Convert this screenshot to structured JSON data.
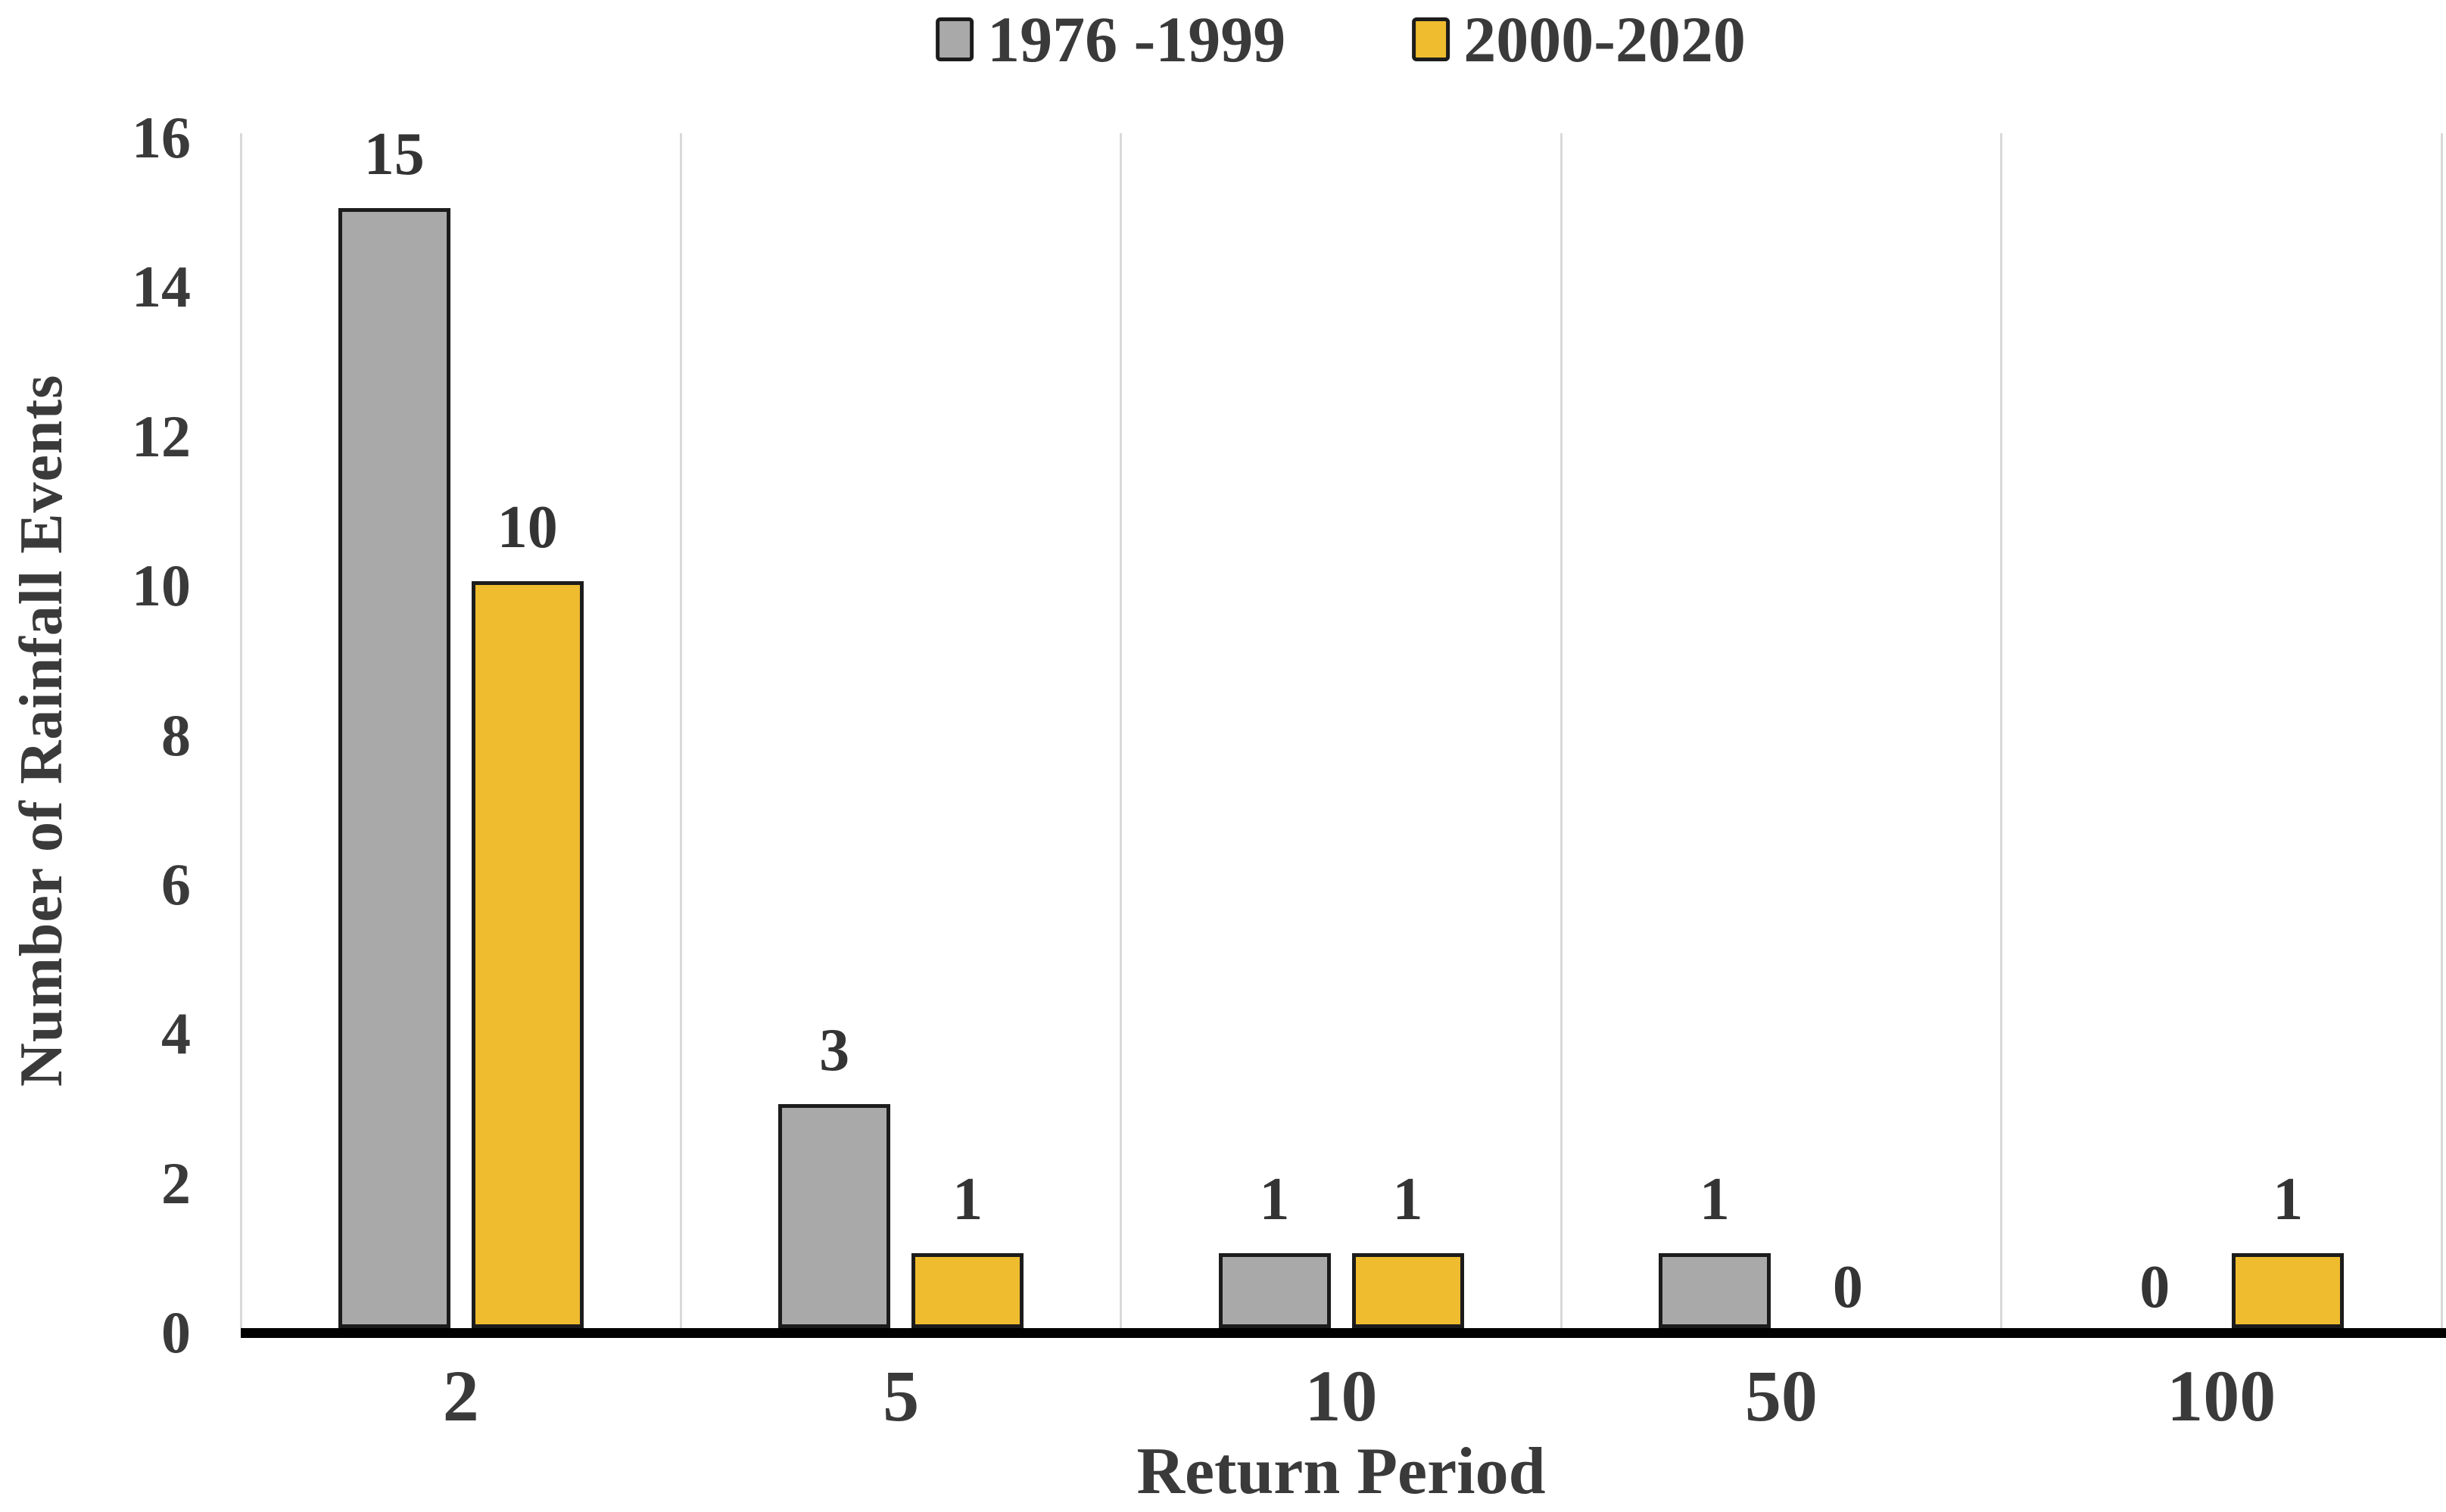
{
  "chart_data": {
    "type": "bar",
    "title": "",
    "categories": [
      "2",
      "5",
      "10",
      "50",
      "100"
    ],
    "series": [
      {
        "name": "1976 -1999",
        "color": "#A9A9A9",
        "values": [
          15,
          3,
          1,
          1,
          0
        ]
      },
      {
        "name": "2000-2020",
        "color": "#EFBC2F",
        "values": [
          10,
          1,
          1,
          0,
          1
        ]
      }
    ],
    "xlabel": "Return Period",
    "ylabel": "Number of Rainfall Events",
    "ylim": [
      0,
      16
    ],
    "yticks": [
      "0",
      "2",
      "4",
      "6",
      "8",
      "10",
      "12",
      "14",
      "16"
    ],
    "ytick_step": 2,
    "data_labels": true,
    "grid": "vertical-category-boundaries",
    "legend_position": "top-center",
    "colors": {
      "text": "#3a3a3a",
      "gridline": "#d9d9d9",
      "axis_line": "#000000",
      "bar_border": "#1c1c1c",
      "background": "#ffffff"
    }
  }
}
